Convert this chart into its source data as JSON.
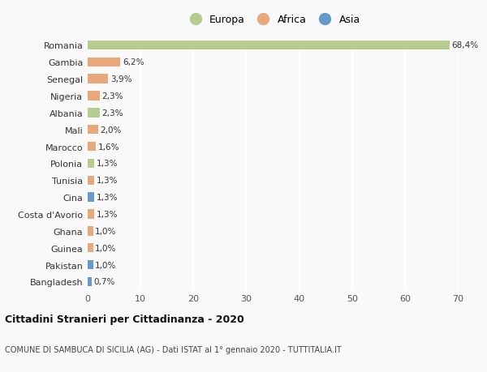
{
  "countries": [
    "Romania",
    "Gambia",
    "Senegal",
    "Nigeria",
    "Albania",
    "Mali",
    "Marocco",
    "Polonia",
    "Tunisia",
    "Cina",
    "Costa d'Avorio",
    "Ghana",
    "Guinea",
    "Pakistan",
    "Bangladesh"
  ],
  "values": [
    68.4,
    6.2,
    3.9,
    2.3,
    2.3,
    2.0,
    1.6,
    1.3,
    1.3,
    1.3,
    1.3,
    1.0,
    1.0,
    1.0,
    0.7
  ],
  "labels": [
    "68,4%",
    "6,2%",
    "3,9%",
    "2,3%",
    "2,3%",
    "2,0%",
    "1,6%",
    "1,3%",
    "1,3%",
    "1,3%",
    "1,3%",
    "1,0%",
    "1,0%",
    "1,0%",
    "0,7%"
  ],
  "continents": [
    "Europa",
    "Africa",
    "Africa",
    "Africa",
    "Europa",
    "Africa",
    "Africa",
    "Europa",
    "Africa",
    "Asia",
    "Africa",
    "Africa",
    "Africa",
    "Asia",
    "Asia"
  ],
  "colors": {
    "Europa": "#b5cc8e",
    "Africa": "#e8a87c",
    "Asia": "#6699cc"
  },
  "title": "Cittadini Stranieri per Cittadinanza - 2020",
  "subtitle": "COMUNE DI SAMBUCA DI SICILIA (AG) - Dati ISTAT al 1° gennaio 2020 - TUTTITALIA.IT",
  "xlim": [
    0,
    70
  ],
  "xticks": [
    0,
    10,
    20,
    30,
    40,
    50,
    60,
    70
  ],
  "background_color": "#f9f9f9",
  "grid_color": "#ffffff",
  "bar_height": 0.55
}
